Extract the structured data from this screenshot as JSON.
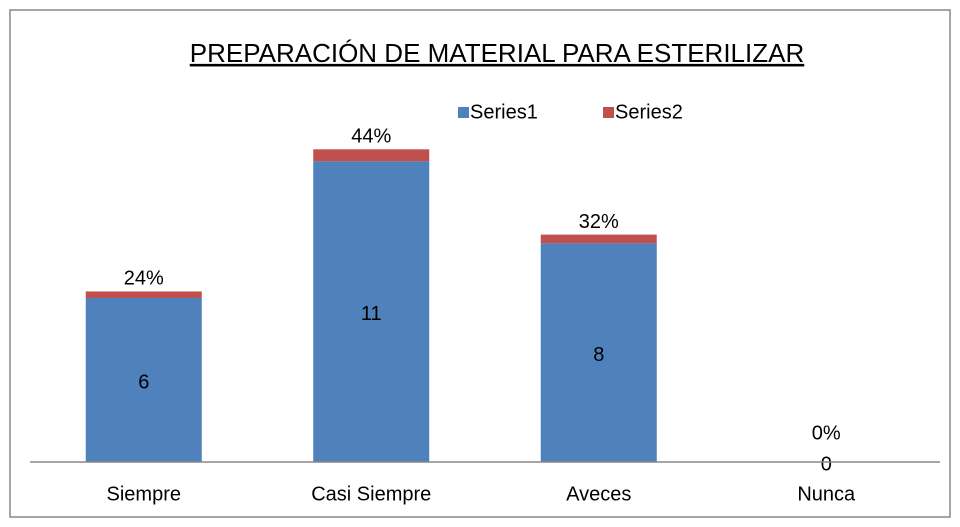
{
  "chart_data": {
    "type": "stacked_bar",
    "title": "PREPARACIÓN DE MATERIAL PARA ESTERILIZAR",
    "categories": [
      "Siempre",
      "Casi Siempre",
      "Aveces",
      "Nunca"
    ],
    "series": [
      {
        "name": "Series1",
        "color": "#4f81bd",
        "values": [
          6,
          11,
          8,
          0
        ]
      },
      {
        "name": "Series2",
        "color": "#c0504d",
        "values": [
          0.24,
          0.44,
          0.32,
          0
        ],
        "value_labels": [
          "24%",
          "44%",
          "32%",
          "0%"
        ]
      }
    ],
    "ylim": [
      0,
      12
    ]
  }
}
